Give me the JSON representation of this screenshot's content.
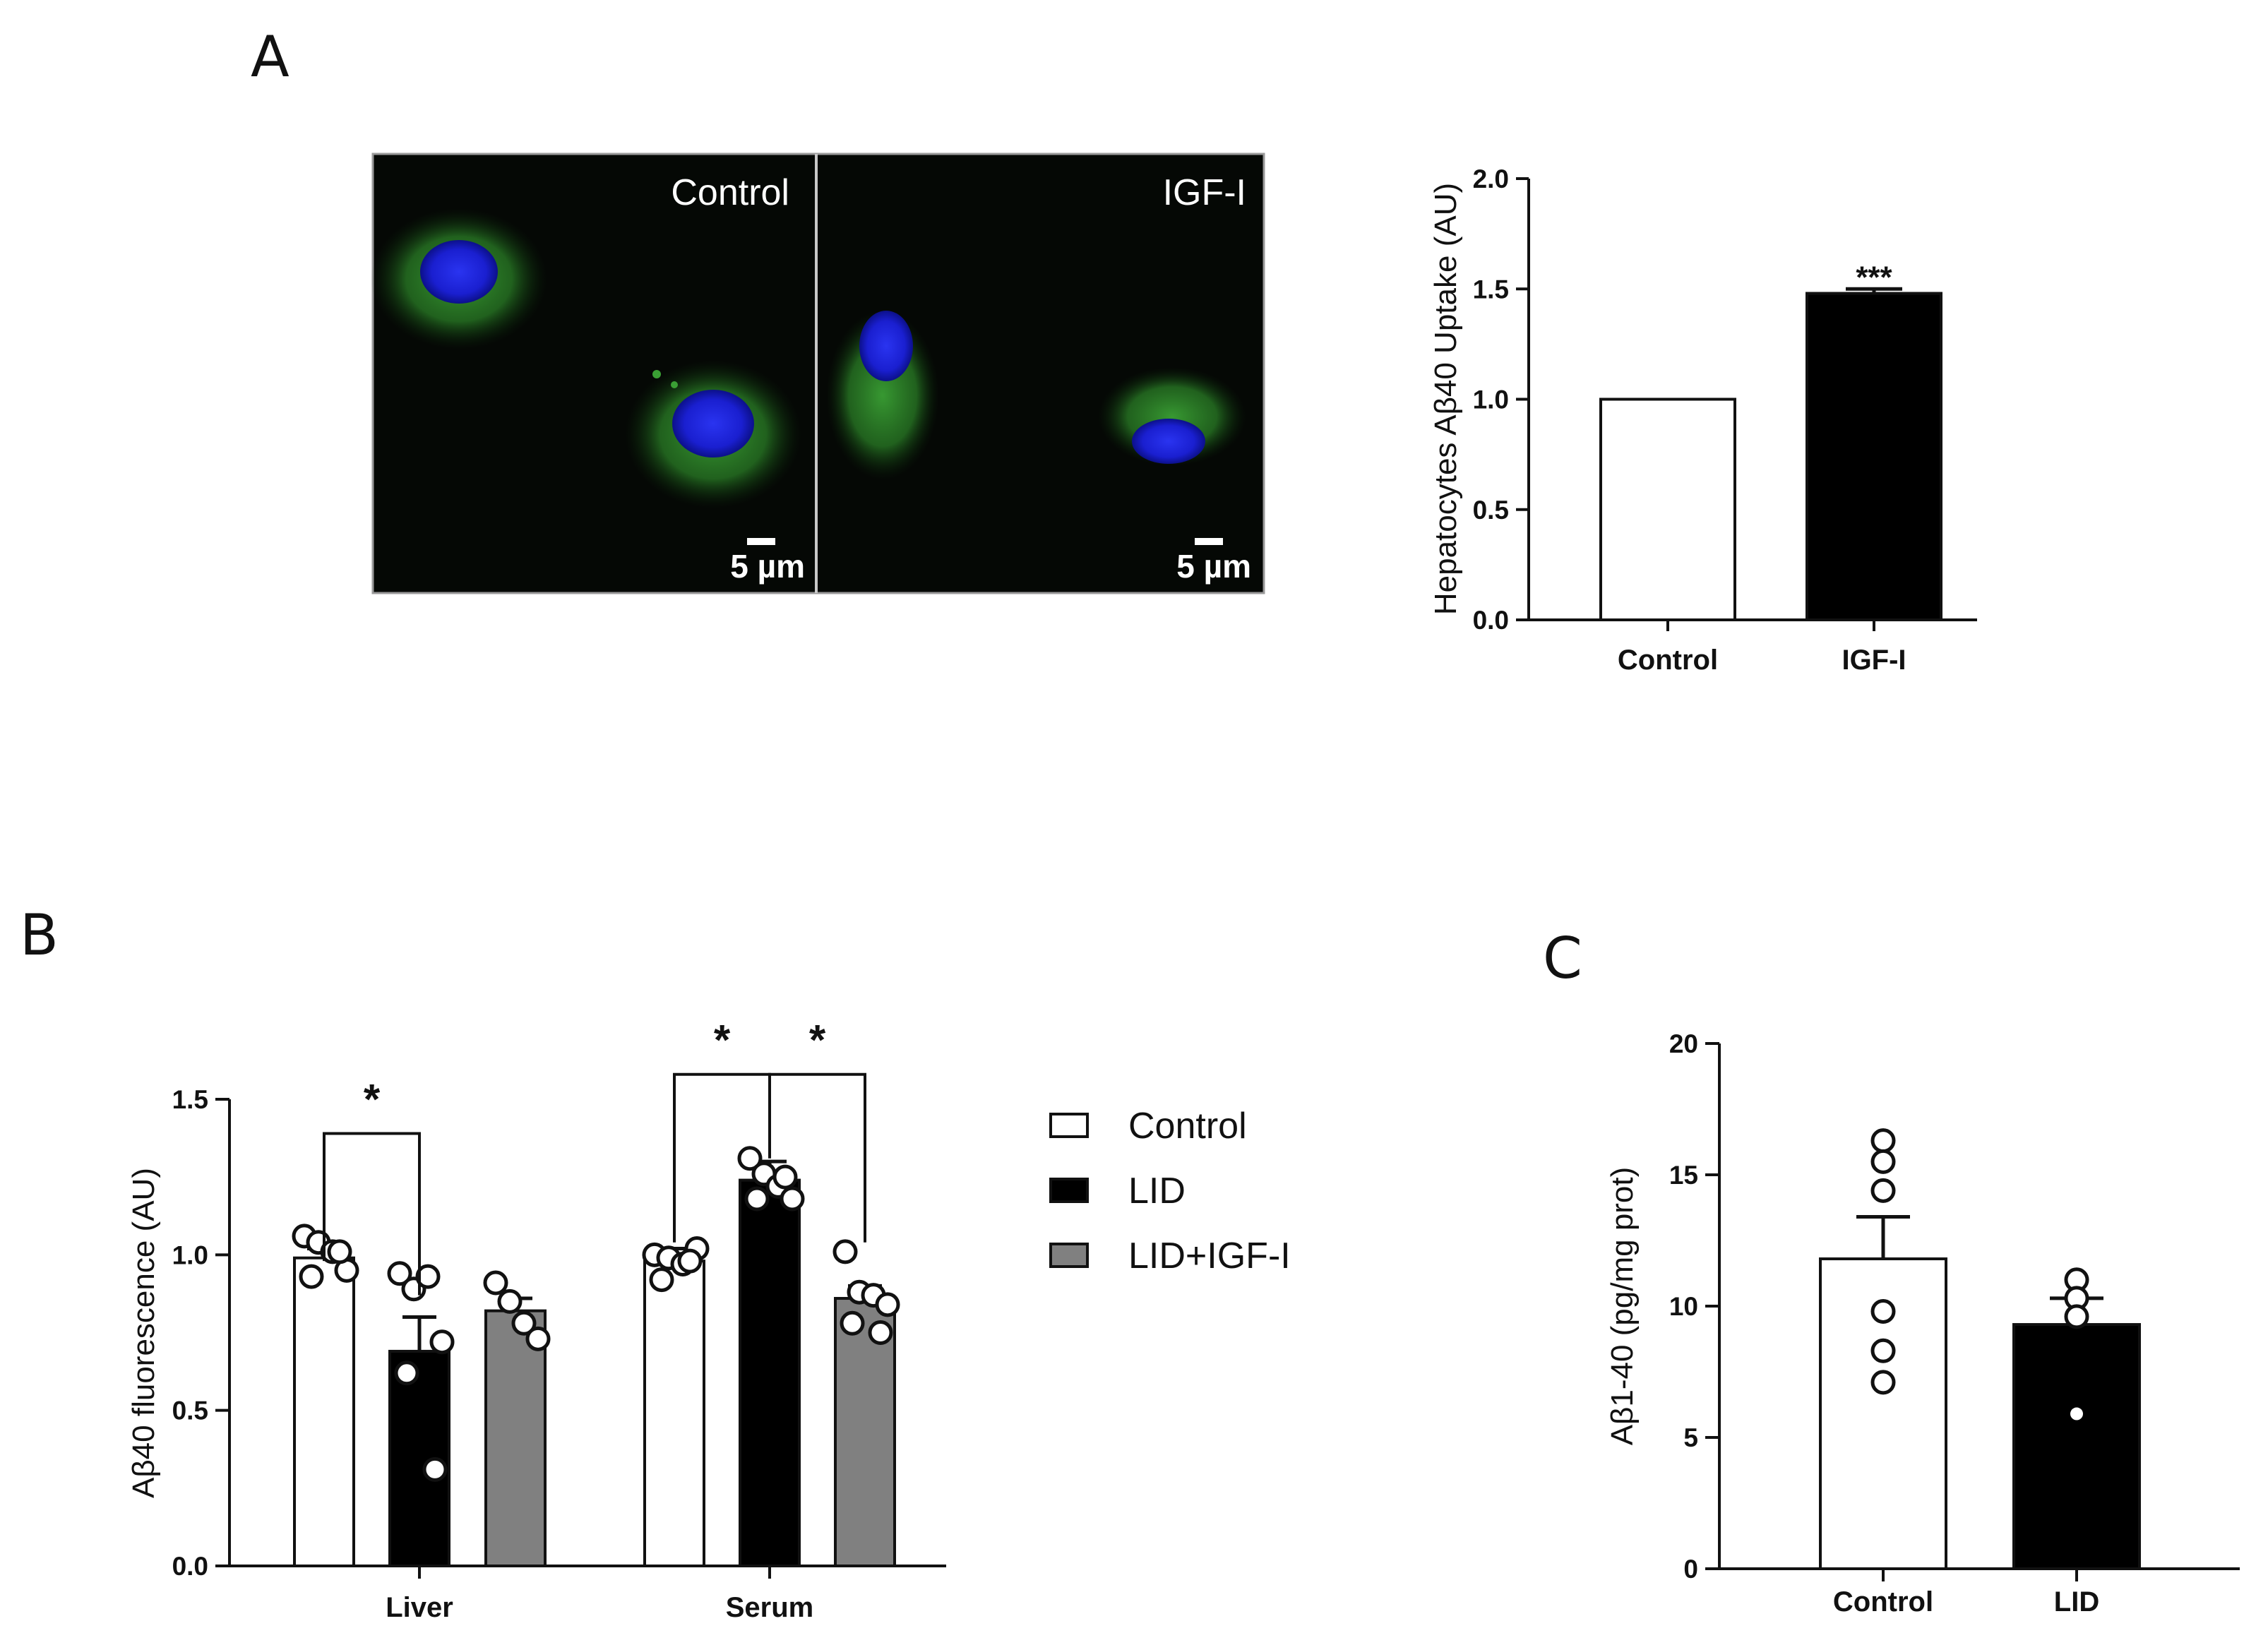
{
  "panel_labels": {
    "A": "A",
    "B": "B",
    "C": "C"
  },
  "micrographs": {
    "left_label": "Control",
    "right_label": "IGF-I",
    "scale_bar_left": "5 µm",
    "scale_bar_right": "5 µm",
    "colors": {
      "background": "#050805",
      "nucleus": "#1a1fd0",
      "cytoplasm": "#2f8f2a",
      "divider": "#c8c8c8"
    }
  },
  "chart_data": [
    {
      "id": "A",
      "type": "bar",
      "ylabel": "Hepatocytes Aβ40 Uptake (AU)",
      "ylim": [
        0,
        2.0
      ],
      "yticks": [
        0.0,
        0.5,
        1.0,
        1.5,
        2.0
      ],
      "ytick_labels": [
        "0.0",
        "0.5",
        "1.0",
        "1.5",
        "2.0"
      ],
      "categories": [
        "Control",
        "IGF-I"
      ],
      "values": [
        1.0,
        1.48
      ],
      "errors": [
        0,
        0.02
      ],
      "colors": [
        "#ffffff",
        "#000000"
      ],
      "annotations": [
        {
          "category": "IGF-I",
          "text": "***"
        }
      ]
    },
    {
      "id": "B",
      "type": "bar",
      "ylabel": "Aβ40 fluorescence (AU)",
      "ylim": [
        0,
        1.5
      ],
      "yticks": [
        0.0,
        0.5,
        1.0,
        1.5
      ],
      "ytick_labels": [
        "0.0",
        "0.5",
        "1.0",
        "1.5"
      ],
      "categories": [
        "Liver",
        "Serum"
      ],
      "legend": {
        "position": "right"
      },
      "series": [
        {
          "name": "Control",
          "color": "#ffffff",
          "values": [
            0.99,
            0.98
          ],
          "errors": [
            0.03,
            0.04
          ],
          "points": [
            [
              1.06,
              1.04,
              1.01,
              0.95,
              0.93,
              1.01
            ],
            [
              1.0,
              0.99,
              0.97,
              1.02,
              0.92,
              0.98
            ]
          ]
        },
        {
          "name": "LID",
          "color": "#000000",
          "values": [
            0.69,
            1.24
          ],
          "errors": [
            0.11,
            0.06
          ],
          "points": [
            [
              0.94,
              0.89,
              0.93,
              0.72,
              0.62,
              0.31
            ],
            [
              1.31,
              1.26,
              1.22,
              1.18,
              1.18,
              1.25
            ]
          ]
        },
        {
          "name": "LID+IGF-I",
          "color": "#808080",
          "values": [
            0.82,
            0.86
          ],
          "errors": [
            0.04,
            0.04
          ],
          "points": [
            [
              0.91,
              0.85,
              0.78,
              0.73
            ],
            [
              1.01,
              0.88,
              0.87,
              0.84,
              0.78,
              0.75
            ]
          ]
        }
      ],
      "significance": [
        {
          "category": "Liver",
          "between": [
            "Control",
            "LID"
          ],
          "text": "*"
        },
        {
          "category": "Serum",
          "between": [
            "Control",
            "LID"
          ],
          "text": "*"
        },
        {
          "category": "Serum",
          "between": [
            "LID",
            "LID+IGF-I"
          ],
          "text": "*"
        }
      ]
    },
    {
      "id": "C",
      "type": "bar",
      "ylabel": "Aβ1-40 (pg/mg prot)",
      "ylim": [
        0,
        20
      ],
      "yticks": [
        0,
        5,
        10,
        15,
        20
      ],
      "ytick_labels": [
        "0",
        "5",
        "10",
        "15",
        "20"
      ],
      "categories": [
        "Control",
        "LID"
      ],
      "values": [
        11.8,
        9.3
      ],
      "errors": [
        1.6,
        1.0
      ],
      "colors": [
        "#ffffff",
        "#000000"
      ],
      "points": [
        [
          16.3,
          15.5,
          14.4,
          9.8,
          8.3,
          7.1
        ],
        [
          11.0,
          10.3,
          9.6,
          5.9
        ]
      ]
    }
  ]
}
